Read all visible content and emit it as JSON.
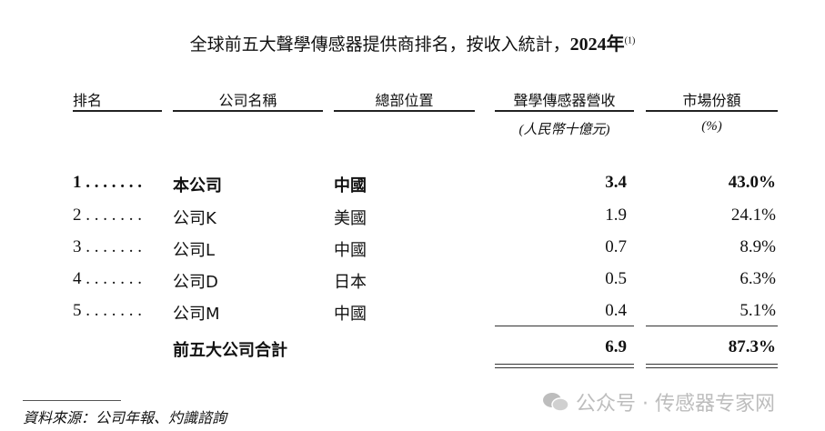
{
  "title": {
    "text": "全球前五大聲學傳感器提供商排名，按收入統計，",
    "year": "2024年",
    "note": "(1)"
  },
  "headers": {
    "rank": "排名",
    "company": "公司名稱",
    "hq": "總部位置",
    "revenue": "聲學傳感器營收",
    "share": "市場份額"
  },
  "units": {
    "revenue": "(人民幣十億元)",
    "share": "(%)"
  },
  "rows": [
    {
      "rank": "1 . . . . . . .",
      "company": "本公司",
      "hq": "中國",
      "revenue": "3.4",
      "share": "43.0%",
      "bold": true
    },
    {
      "rank": "2 . . . . . . .",
      "company": "公司K",
      "hq": "美國",
      "revenue": "1.9",
      "share": "24.1%"
    },
    {
      "rank": "3 . . . . . . .",
      "company": "公司L",
      "hq": "中國",
      "revenue": "0.7",
      "share": "8.9%"
    },
    {
      "rank": "4 . . . . . . .",
      "company": "公司D",
      "hq": "日本",
      "revenue": "0.5",
      "share": "6.3%"
    },
    {
      "rank": "5 . . . . . . .",
      "company": "公司M",
      "hq": "中國",
      "revenue": "0.4",
      "share": "5.1%"
    }
  ],
  "total": {
    "label": "前五大公司合計",
    "revenue": "6.9",
    "share": "87.3%"
  },
  "source": "資料來源：公司年報、灼識諮詢",
  "watermark": "公众号 · 传感器专家网"
}
